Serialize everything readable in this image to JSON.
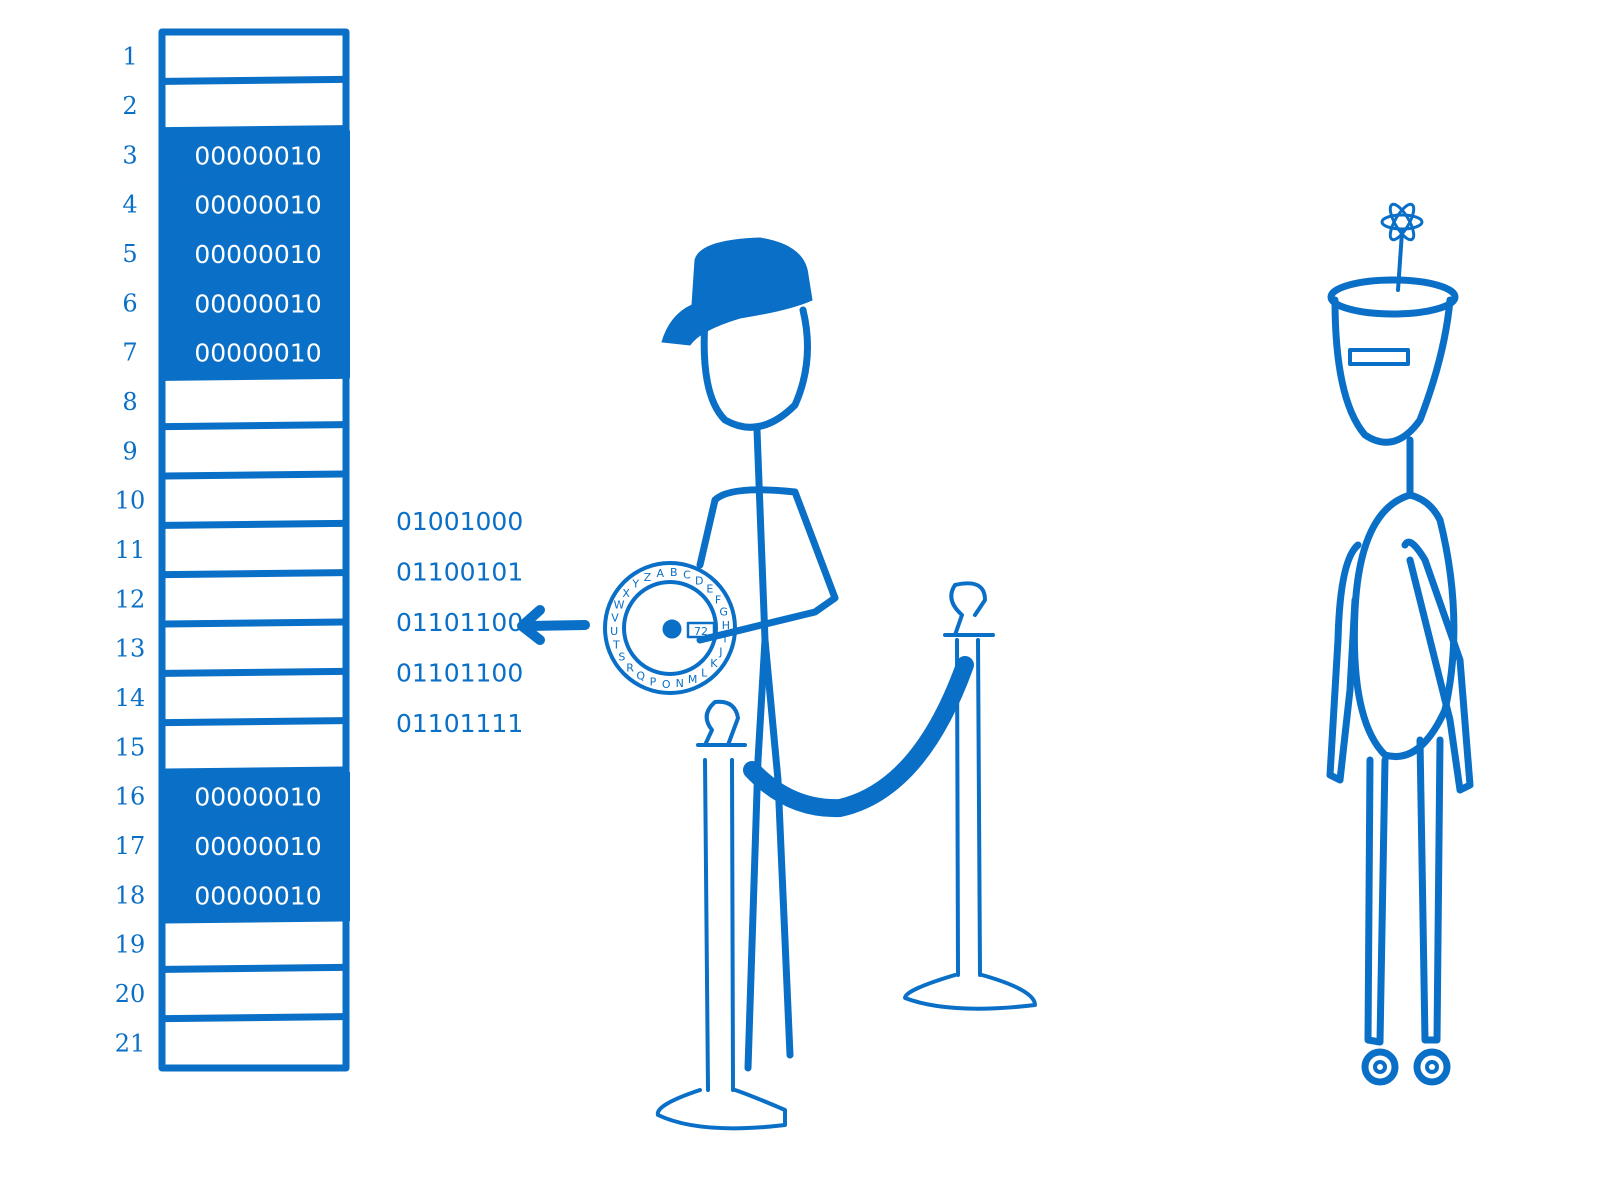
{
  "memory": {
    "rows": [
      {
        "index": "1",
        "value": ""
      },
      {
        "index": "2",
        "value": ""
      },
      {
        "index": "3",
        "value": "00000010"
      },
      {
        "index": "4",
        "value": "00000010"
      },
      {
        "index": "5",
        "value": "00000010"
      },
      {
        "index": "6",
        "value": "00000010"
      },
      {
        "index": "7",
        "value": "00000010"
      },
      {
        "index": "8",
        "value": ""
      },
      {
        "index": "9",
        "value": ""
      },
      {
        "index": "10",
        "value": ""
      },
      {
        "index": "11",
        "value": ""
      },
      {
        "index": "12",
        "value": ""
      },
      {
        "index": "13",
        "value": ""
      },
      {
        "index": "14",
        "value": ""
      },
      {
        "index": "15",
        "value": ""
      },
      {
        "index": "16",
        "value": "00000010"
      },
      {
        "index": "17",
        "value": "00000010"
      },
      {
        "index": "18",
        "value": "00000010"
      },
      {
        "index": "19",
        "value": ""
      },
      {
        "index": "20",
        "value": ""
      },
      {
        "index": "21",
        "value": ""
      }
    ]
  },
  "bytes": [
    "01001000",
    "01100101",
    "01101100",
    "01101100",
    "01101111"
  ],
  "decoder_wheel": {
    "letters": [
      "A",
      "B",
      "C",
      "D",
      "E",
      "F",
      "G",
      "H",
      "I",
      "J",
      "K",
      "L",
      "M",
      "N",
      "O",
      "P",
      "Q",
      "R",
      "S",
      "T",
      "U",
      "V",
      "W",
      "X",
      "Y",
      "Z"
    ],
    "window_value": "72"
  },
  "colors": {
    "ink": "#0a6fc6",
    "background": "#ffffff"
  }
}
